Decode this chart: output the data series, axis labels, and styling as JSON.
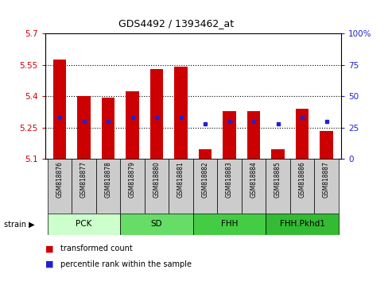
{
  "title": "GDS4492 / 1393462_at",
  "samples": [
    "GSM818876",
    "GSM818877",
    "GSM818878",
    "GSM818879",
    "GSM818880",
    "GSM818881",
    "GSM818882",
    "GSM818883",
    "GSM818884",
    "GSM818885",
    "GSM818886",
    "GSM818887"
  ],
  "bar_values": [
    5.575,
    5.4,
    5.395,
    5.425,
    5.53,
    5.54,
    5.145,
    5.33,
    5.33,
    5.145,
    5.34,
    5.235
  ],
  "percentile_values": [
    33,
    30,
    30,
    33,
    33,
    33,
    28,
    30,
    30,
    28,
    33,
    30
  ],
  "ylim_left": [
    5.1,
    5.7
  ],
  "ylim_right": [
    0,
    100
  ],
  "yticks_left": [
    5.1,
    5.25,
    5.4,
    5.55,
    5.7
  ],
  "ytick_labels_left": [
    "5.1",
    "5.25",
    "5.4",
    "5.55",
    "5.7"
  ],
  "yticks_right": [
    0,
    25,
    50,
    75,
    100
  ],
  "ytick_labels_right": [
    "0",
    "25",
    "50",
    "75",
    "100%"
  ],
  "hlines": [
    5.25,
    5.4,
    5.55
  ],
  "bar_color": "#cc0000",
  "dot_color": "#2222cc",
  "bar_bottom": 5.1,
  "groups": [
    {
      "label": "PCK",
      "start": 0,
      "end": 3,
      "color": "#ccffcc"
    },
    {
      "label": "SD",
      "start": 3,
      "end": 6,
      "color": "#66dd66"
    },
    {
      "label": "FHH",
      "start": 6,
      "end": 9,
      "color": "#44cc44"
    },
    {
      "label": "FHH.Pkhd1",
      "start": 9,
      "end": 12,
      "color": "#33bb33"
    }
  ],
  "strain_label": "strain",
  "legend_items": [
    {
      "color": "#cc0000",
      "label": "transformed count"
    },
    {
      "color": "#2222cc",
      "label": "percentile rank within the sample"
    }
  ],
  "left_color": "#cc0000",
  "right_color": "#2222cc",
  "tick_area_color": "#cccccc",
  "bar_width": 0.55
}
